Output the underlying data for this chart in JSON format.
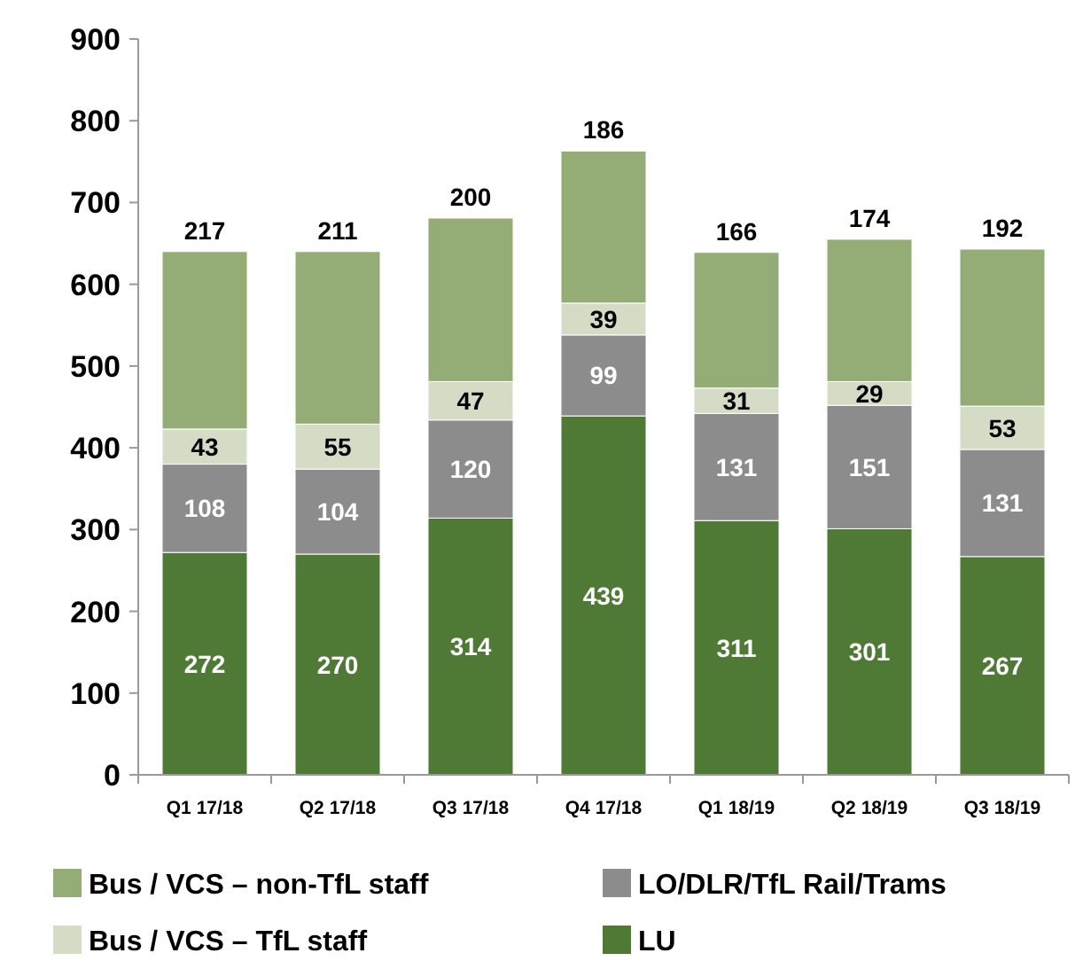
{
  "chart_data": {
    "type": "bar",
    "stacked": true,
    "categories": [
      "Q1 17/18",
      "Q2 17/18",
      "Q3 17/18",
      "Q4 17/18",
      "Q1 18/19",
      "Q2 18/19",
      "Q3 18/19"
    ],
    "series": [
      {
        "name": "LU",
        "color": "#4f7a35",
        "values": [
          272,
          270,
          314,
          439,
          311,
          301,
          267
        ]
      },
      {
        "name": "LO/DLR/TfL Rail/Trams",
        "color": "#8c8c8c",
        "values": [
          108,
          104,
          120,
          99,
          131,
          151,
          131
        ]
      },
      {
        "name": "Bus / VCS – TfL staff",
        "color": "#d5dcc6",
        "values": [
          43,
          55,
          47,
          39,
          31,
          29,
          53
        ]
      },
      {
        "name": "Bus / VCS – non-TfL staff",
        "color": "#94ad76",
        "values": [
          217,
          211,
          200,
          186,
          166,
          174,
          192
        ]
      }
    ],
    "ylim": [
      0,
      900
    ],
    "yticks": [
      0,
      100,
      200,
      300,
      400,
      500,
      600,
      700,
      800,
      900
    ],
    "data_labels": true,
    "legend": "bottom",
    "grid": false
  }
}
